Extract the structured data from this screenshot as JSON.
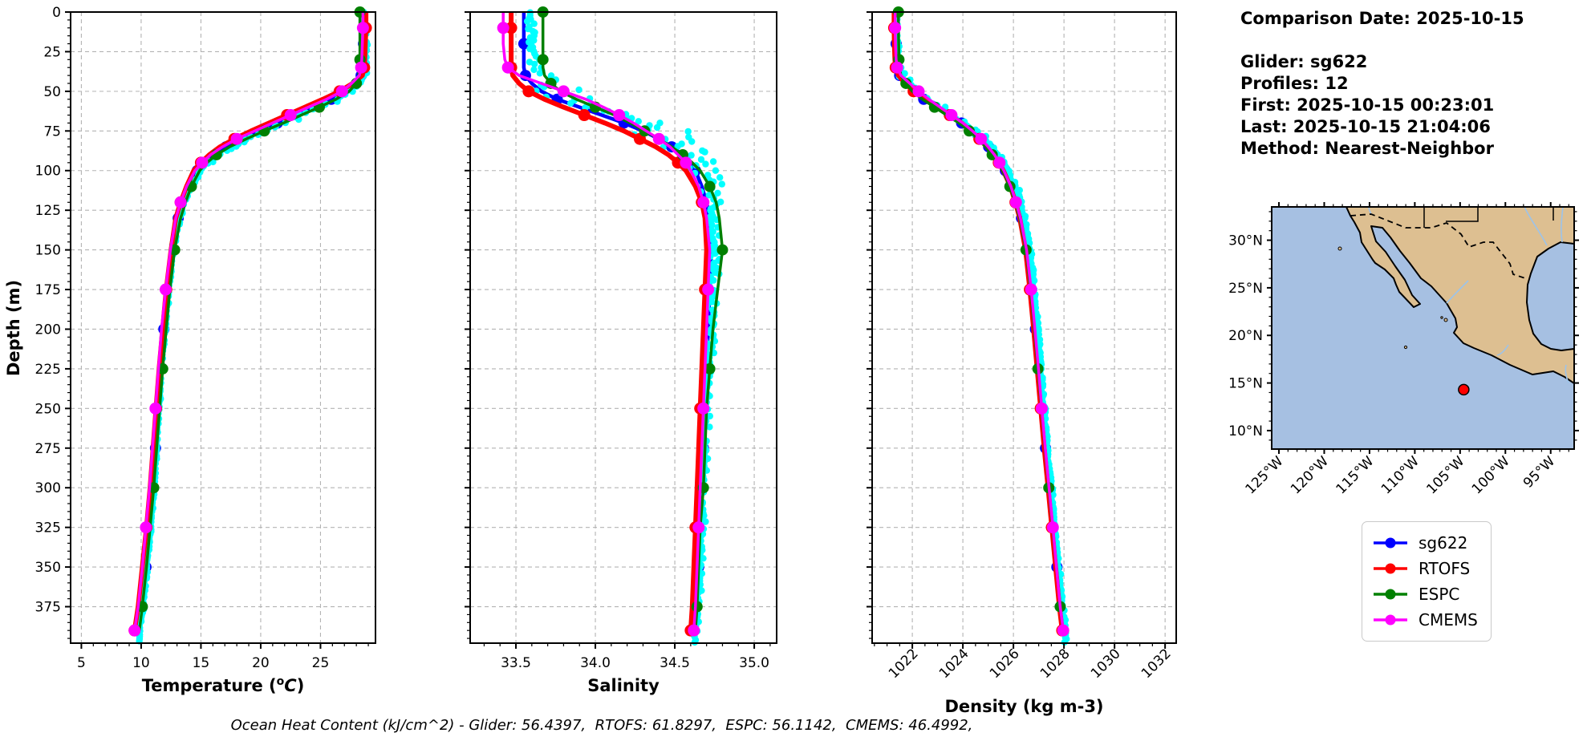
{
  "info_panel": {
    "comparison_date": "Comparison Date: 2025-10-15",
    "glider": "Glider: sg622",
    "profiles": "Profiles: 12",
    "first": "First: 2025-10-15 00:23:01",
    "last": "Last: 2025-10-15 21:04:06",
    "method": "Method: Nearest-Neighbor"
  },
  "footer": {
    "ohc_text": "Ocean Heat Content (kJ/cm^2) - Glider: 56.4397,  RTOFS: 61.8297,  ESPC: 56.1142,  CMEMS: 46.4992,"
  },
  "legend": {
    "entries": [
      {
        "label": "sg622",
        "color": "#0000ff"
      },
      {
        "label": "RTOFS",
        "color": "#ff0000"
      },
      {
        "label": "ESPC",
        "color": "#008000"
      },
      {
        "label": "CMEMS",
        "color": "#ff00ff"
      }
    ]
  },
  "map": {
    "ocean_color": "#a6c0e2",
    "land_color": "#ddbf91",
    "river_color": "#9cc3ea",
    "lat_tick_values": [
      30,
      25,
      20,
      15,
      10
    ],
    "lat_tick_labels": [
      "30°N",
      "25°N",
      "20°N",
      "15°N",
      "10°N"
    ],
    "lon_tick_values": [
      -125,
      -120,
      -115,
      -110,
      -105,
      -100,
      -95
    ],
    "lon_tick_labels": [
      "125°W",
      "120°W",
      "115°W",
      "110°W",
      "105°W",
      "100°W",
      "95°W"
    ],
    "marker": {
      "lon": -104.6,
      "lat": 14.3,
      "color": "#ff0000"
    }
  },
  "chart_data": {
    "type": "line",
    "orientation": "depth-profiles",
    "ylabel": "Depth (m)",
    "ylim": [
      0,
      398
    ],
    "yticks": [
      0,
      25,
      50,
      75,
      100,
      125,
      150,
      175,
      200,
      225,
      250,
      275,
      300,
      325,
      350,
      375
    ],
    "depths": [
      0,
      10,
      20,
      30,
      35,
      40,
      45,
      50,
      55,
      60,
      65,
      70,
      75,
      80,
      85,
      90,
      95,
      100,
      110,
      120,
      130,
      150,
      175,
      200,
      225,
      250,
      275,
      300,
      325,
      350,
      375,
      390
    ],
    "charts": [
      {
        "name": "temperature-profile",
        "xlabel_parts": [
          {
            "t": "Temperature ("
          },
          {
            "t": "o",
            "sup": true
          },
          {
            "t": "C",
            "italic": true
          },
          {
            "t": ")"
          }
        ],
        "xlim": [
          4.1,
          29.6
        ],
        "xticks": [
          5,
          10,
          15,
          20,
          25
        ],
        "xtick_labels": [
          "5",
          "10",
          "15",
          "20",
          "25"
        ],
        "xminor_step": 1,
        "rotate_xtick_labels": false,
        "series": [
          {
            "name": "sg622",
            "color": "#0000ff",
            "linewidth": 4.5,
            "markersize": 7,
            "markphase": 2,
            "values": [
              28.6,
              28.6,
              28.6,
              28.55,
              28.5,
              28.4,
              27.9,
              27.1,
              25.9,
              24.4,
              22.9,
              21.4,
              19.9,
              18.4,
              17.1,
              16.1,
              15.3,
              14.7,
              14.0,
              13.5,
              13.1,
              12.6,
              12.2,
              11.9,
              11.6,
              11.4,
              11.2,
              11.0,
              10.7,
              10.4,
              10.1,
              9.8
            ]
          },
          {
            "name": "RTOFS",
            "color": "#ff0000",
            "linewidth": 6,
            "markersize": 7.5,
            "markphase": 1,
            "values": [
              28.8,
              28.8,
              28.75,
              28.7,
              28.65,
              28.5,
              27.7,
              26.6,
              25.2,
              23.7,
              22.2,
              20.7,
              19.2,
              17.8,
              16.6,
              15.7,
              15.0,
              14.4,
              13.8,
              13.3,
              12.9,
              12.5,
              12.1,
              11.8,
              11.5,
              11.25,
              11.0,
              10.75,
              10.45,
              10.1,
              9.75,
              9.45
            ]
          },
          {
            "name": "ESPC",
            "color": "#008000",
            "linewidth": 3.5,
            "markersize": 7,
            "markphase": 0,
            "values": [
              28.3,
              28.3,
              28.3,
              28.3,
              28.25,
              28.2,
              28.0,
              27.4,
              26.3,
              24.9,
              23.4,
              21.9,
              20.3,
              18.8,
              17.4,
              16.3,
              15.5,
              14.9,
              14.2,
              13.7,
              13.3,
              12.8,
              12.4,
              12.1,
              11.8,
              11.55,
              11.3,
              11.05,
              10.75,
              10.45,
              10.1,
              9.85
            ]
          },
          {
            "name": "CMEMS",
            "color": "#ff00ff",
            "linewidth": 3.5,
            "markersize": 7.5,
            "markphase": 1,
            "values": [
              28.55,
              28.55,
              28.5,
              28.45,
              28.4,
              28.25,
              27.6,
              26.8,
              25.5,
              24.0,
              22.5,
              21.0,
              19.5,
              18.0,
              16.8,
              15.8,
              15.1,
              14.5,
              13.8,
              13.3,
              12.9,
              12.45,
              12.05,
              11.7,
              11.45,
              11.2,
              10.95,
              10.7,
              10.4,
              10.1,
              9.75,
              9.45
            ]
          }
        ],
        "scatter": {
          "name": "glider-raw",
          "color": "#00ffff",
          "base": "sg622",
          "dot_radius": 4.2,
          "n": 280,
          "amp": [
            [
              0,
              0.07
            ],
            [
              40,
              0.3
            ],
            [
              60,
              0.55
            ],
            [
              90,
              0.5
            ],
            [
              110,
              0.25
            ],
            [
              150,
              0.12
            ],
            [
              398,
              0.1
            ]
          ],
          "offset": [
            [
              0,
              0.05
            ],
            [
              50,
              0.3
            ],
            [
              70,
              0.5
            ],
            [
              90,
              0.4
            ],
            [
              120,
              0.1
            ],
            [
              398,
              0.07
            ]
          ]
        }
      },
      {
        "name": "salinity-profile",
        "xlabel_parts": [
          {
            "t": "Salinity"
          }
        ],
        "xlim": [
          33.212,
          35.141
        ],
        "xticks": [
          33.5,
          34.0,
          34.5,
          35.0
        ],
        "xtick_labels": [
          "33.5",
          "34.0",
          "34.5",
          "35.0"
        ],
        "xminor_step": 0.1,
        "rotate_xtick_labels": false,
        "series": [
          {
            "name": "sg622",
            "color": "#0000ff",
            "linewidth": 4.5,
            "markersize": 7,
            "markphase": 2,
            "values": [
              33.55,
              33.55,
              33.55,
              33.55,
              33.55,
              33.56,
              33.6,
              33.66,
              33.76,
              33.9,
              34.04,
              34.18,
              34.3,
              34.4,
              34.48,
              34.55,
              34.6,
              34.63,
              34.67,
              34.7,
              34.72,
              34.73,
              34.72,
              34.71,
              34.7,
              34.69,
              34.68,
              34.67,
              34.66,
              34.65,
              34.64,
              34.63
            ]
          },
          {
            "name": "RTOFS",
            "color": "#ff0000",
            "linewidth": 6,
            "markersize": 7.5,
            "markphase": 1,
            "values": [
              33.47,
              33.47,
              33.47,
              33.47,
              33.47,
              33.48,
              33.52,
              33.58,
              33.68,
              33.8,
              33.93,
              34.06,
              34.18,
              34.28,
              34.38,
              34.46,
              34.52,
              34.57,
              34.63,
              34.67,
              34.69,
              34.7,
              34.69,
              34.68,
              34.67,
              34.66,
              34.65,
              34.64,
              34.63,
              34.62,
              34.61,
              34.6
            ]
          },
          {
            "name": "ESPC",
            "color": "#008000",
            "linewidth": 3.5,
            "markersize": 7,
            "markphase": 0,
            "values": [
              33.67,
              33.67,
              33.67,
              33.67,
              33.67,
              33.68,
              33.72,
              33.78,
              33.88,
              34.0,
              34.12,
              34.22,
              34.31,
              34.4,
              34.48,
              34.55,
              34.61,
              34.66,
              34.72,
              34.76,
              34.78,
              34.8,
              34.77,
              34.74,
              34.72,
              34.7,
              34.69,
              34.68,
              34.66,
              34.65,
              34.64,
              34.63
            ]
          },
          {
            "name": "CMEMS",
            "color": "#ff00ff",
            "linewidth": 3.5,
            "markersize": 7.5,
            "markphase": 1,
            "values": [
              33.42,
              33.42,
              33.42,
              33.43,
              33.45,
              33.52,
              33.66,
              33.8,
              33.94,
              34.05,
              34.15,
              34.24,
              34.32,
              34.4,
              34.47,
              34.52,
              34.57,
              34.6,
              34.65,
              34.68,
              34.7,
              34.72,
              34.71,
              34.7,
              34.69,
              34.68,
              34.67,
              34.66,
              34.65,
              34.64,
              34.63,
              34.62
            ]
          }
        ],
        "scatter": {
          "name": "glider-raw",
          "color": "#00ffff",
          "base": "sg622",
          "dot_radius": 4.2,
          "n": 280,
          "amp": [
            [
              0,
              0.02
            ],
            [
              35,
              0.05
            ],
            [
              45,
              0.22
            ],
            [
              60,
              0.22
            ],
            [
              90,
              0.15
            ],
            [
              120,
              0.04
            ],
            [
              398,
              0.015
            ]
          ],
          "offset": [
            [
              0,
              0.03
            ],
            [
              60,
              0.12
            ],
            [
              90,
              0.1
            ],
            [
              130,
              0.02
            ],
            [
              398,
              0.0
            ]
          ]
        }
      },
      {
        "name": "density-profile",
        "xlabel_parts": [
          {
            "t": "Density (kg m-3)"
          }
        ],
        "xlim": [
          1020.41,
          1032.44
        ],
        "xticks": [
          1022,
          1024,
          1026,
          1028,
          1030,
          1032
        ],
        "xtick_labels": [
          "1022",
          "1024",
          "1026",
          "1028",
          "1030",
          "1032"
        ],
        "xminor_step": 0.5,
        "rotate_xtick_labels": true,
        "series": [
          {
            "name": "sg622",
            "color": "#0000ff",
            "linewidth": 4.5,
            "markersize": 7,
            "markphase": 2,
            "values": [
              1021.35,
              1021.35,
              1021.36,
              1021.38,
              1021.4,
              1021.5,
              1021.75,
              1022.05,
              1022.45,
              1022.95,
              1023.45,
              1023.95,
              1024.35,
              1024.72,
              1025.02,
              1025.28,
              1025.5,
              1025.68,
              1025.95,
              1026.15,
              1026.32,
              1026.55,
              1026.72,
              1026.87,
              1027.0,
              1027.13,
              1027.27,
              1027.42,
              1027.57,
              1027.72,
              1027.88,
              1028.0
            ]
          },
          {
            "name": "RTOFS",
            "color": "#ff0000",
            "linewidth": 6,
            "markersize": 7.5,
            "markphase": 1,
            "values": [
              1021.28,
              1021.28,
              1021.29,
              1021.31,
              1021.34,
              1021.45,
              1021.72,
              1022.05,
              1022.48,
              1022.98,
              1023.48,
              1023.95,
              1024.32,
              1024.65,
              1024.95,
              1025.2,
              1025.42,
              1025.6,
              1025.88,
              1026.08,
              1026.25,
              1026.48,
              1026.65,
              1026.8,
              1026.94,
              1027.08,
              1027.22,
              1027.37,
              1027.52,
              1027.67,
              1027.82,
              1027.93
            ]
          },
          {
            "name": "ESPC",
            "color": "#008000",
            "linewidth": 3.5,
            "markersize": 7,
            "markphase": 0,
            "values": [
              1021.45,
              1021.45,
              1021.46,
              1021.47,
              1021.49,
              1021.55,
              1021.75,
              1022.0,
              1022.4,
              1022.88,
              1023.36,
              1023.85,
              1024.25,
              1024.6,
              1024.9,
              1025.16,
              1025.38,
              1025.57,
              1025.86,
              1026.07,
              1026.25,
              1026.5,
              1026.68,
              1026.83,
              1026.97,
              1027.11,
              1027.25,
              1027.4,
              1027.55,
              1027.7,
              1027.85,
              1027.96
            ]
          },
          {
            "name": "CMEMS",
            "color": "#ff00ff",
            "linewidth": 3.5,
            "markersize": 7.5,
            "markphase": 1,
            "values": [
              1021.32,
              1021.32,
              1021.33,
              1021.36,
              1021.4,
              1021.55,
              1021.9,
              1022.25,
              1022.65,
              1023.1,
              1023.55,
              1024.0,
              1024.38,
              1024.72,
              1025.0,
              1025.25,
              1025.45,
              1025.62,
              1025.9,
              1026.1,
              1026.28,
              1026.52,
              1026.7,
              1026.85,
              1026.99,
              1027.12,
              1027.26,
              1027.41,
              1027.56,
              1027.7,
              1027.85,
              1027.97
            ]
          }
        ],
        "scatter": {
          "name": "glider-raw",
          "color": "#00ffff",
          "base": "sg622",
          "dot_radius": 4.2,
          "n": 280,
          "amp": [
            [
              0,
              0.04
            ],
            [
              40,
              0.18
            ],
            [
              70,
              0.22
            ],
            [
              110,
              0.12
            ],
            [
              150,
              0.06
            ],
            [
              398,
              0.05
            ]
          ],
          "offset": [
            [
              0,
              0.0
            ],
            [
              60,
              0.15
            ],
            [
              100,
              0.12
            ],
            [
              398,
              0.05
            ]
          ]
        }
      }
    ]
  }
}
